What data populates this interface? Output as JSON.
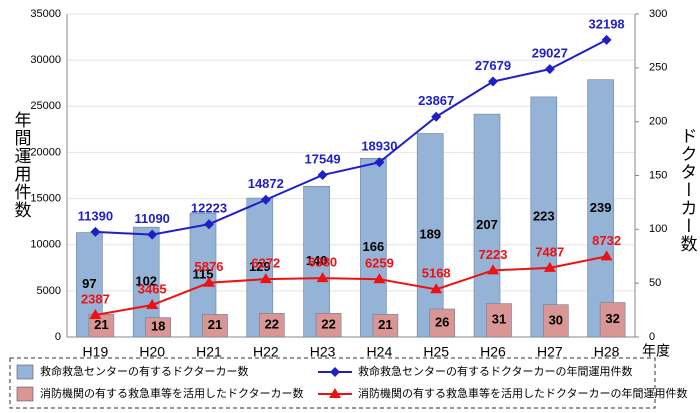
{
  "chart_data": {
    "type": "bar",
    "ylabel": "年間運用件数",
    "y2label": "ドクターカー数",
    "xlabel": "年度",
    "categories": [
      "H19",
      "H20",
      "H21",
      "H22",
      "H23",
      "H24",
      "H25",
      "H26",
      "H27",
      "H28"
    ],
    "series": [
      {
        "name": "救命救急センターの有するドクターカー数",
        "type": "bar",
        "axis": "y2",
        "color": "#95b3d7",
        "values": [
          97,
          102,
          115,
          129,
          140,
          166,
          189,
          207,
          223,
          239
        ]
      },
      {
        "name": "消防機関の有する救急車等を活用したドクターカー数",
        "type": "bar",
        "axis": "y2",
        "color": "#d99694",
        "values": [
          21,
          18,
          21,
          22,
          22,
          21,
          26,
          31,
          30,
          32
        ]
      },
      {
        "name": "救命救急センターの有するドクターカーの年間運用件数",
        "type": "line",
        "marker": "diamond",
        "color": "#1f1fc8",
        "values": [
          11390,
          11090,
          12223,
          14872,
          17549,
          18930,
          23867,
          27679,
          29027,
          32198
        ]
      },
      {
        "name": "消防機関の有する救急車等を活用したドクターカーの年間運用件数",
        "type": "line",
        "marker": "triangle",
        "color": "#ee1111",
        "values": [
          2387,
          3465,
          5876,
          6272,
          6380,
          6259,
          5168,
          7223,
          7487,
          8732
        ]
      }
    ],
    "ylim": [
      0,
      35000
    ],
    "yticks": [
      0,
      5000,
      10000,
      15000,
      20000,
      25000,
      30000,
      35000
    ],
    "y2lim": [
      0,
      300
    ],
    "y2ticks": [
      0,
      50,
      100,
      150,
      200,
      250,
      300
    ],
    "grid": true
  }
}
